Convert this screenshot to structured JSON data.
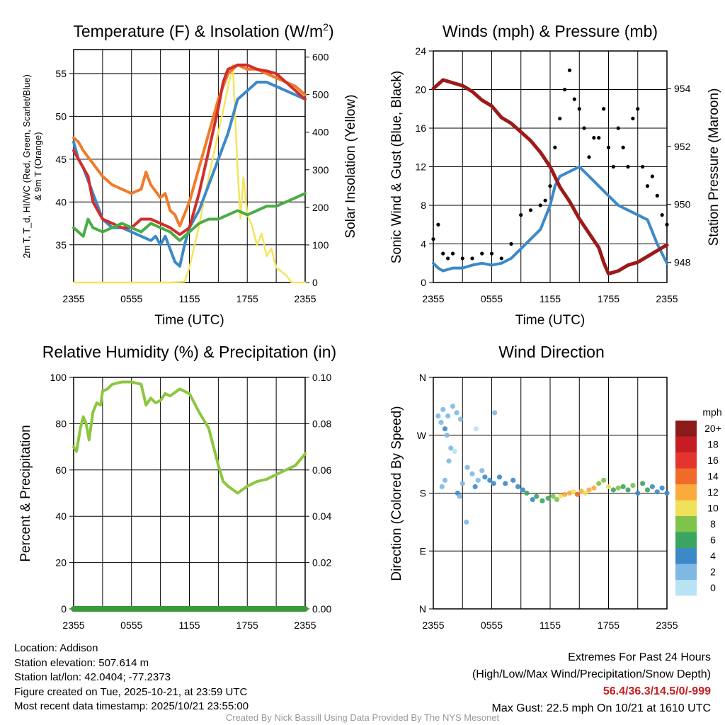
{
  "colors": {
    "red": "#d12e2b",
    "orange": "#f07b2a",
    "green": "#4bac45",
    "blue": "#3d89c8",
    "yellow": "#f6e45a",
    "maroon": "#9b1b1b",
    "rh": "#8dc63f",
    "precip": "#3a9a3a",
    "black": "#000000"
  },
  "chart_data": [
    {
      "id": "temp",
      "type": "line",
      "title": "Temperature (F) & Insolation (W/m",
      "title_sup": "2",
      "title_end": ")",
      "xlabel": "Time (UTC)",
      "ylabel_lines": [
        "2m T, T_d, HI/WC (Red, Green, Scarlet/Blue)",
        "& 9m T (Orange)"
      ],
      "y2label": "Solar Insolation (Yellow)",
      "xticks": [
        "2355",
        "0555",
        "1155",
        "1755",
        "2355"
      ],
      "xlim": [
        0,
        24
      ],
      "ylim": [
        30.6,
        57.8
      ],
      "yticks": [
        "35",
        "40",
        "45",
        "50",
        "55"
      ],
      "ytick_values": [
        35,
        40,
        45,
        50,
        55
      ],
      "y2lim": [
        0,
        620
      ],
      "y2ticks": [
        "0",
        "100",
        "200",
        "300",
        "400",
        "500",
        "600"
      ],
      "y2tick_values": [
        0,
        100,
        200,
        300,
        400,
        500,
        600
      ],
      "series": [
        {
          "name": "Insolation",
          "axis": "y2",
          "color": "yellow",
          "x": [
            0,
            8,
            10,
            11.5,
            12,
            13,
            14,
            15,
            15.6,
            16,
            16.5,
            17,
            17.3,
            17.6,
            18,
            18.5,
            19,
            19.5,
            20,
            20.5,
            21,
            22,
            22.6,
            24
          ],
          "values": [
            0,
            0,
            0,
            2,
            40,
            150,
            280,
            400,
            470,
            520,
            580,
            300,
            170,
            280,
            180,
            150,
            100,
            130,
            70,
            90,
            40,
            20,
            0,
            0
          ]
        },
        {
          "name": "9m T",
          "axis": "y",
          "color": "orange",
          "x": [
            0,
            0.5,
            1,
            2,
            3,
            4,
            5,
            6,
            7,
            7.5,
            8,
            9,
            9.5,
            10,
            10.5,
            11,
            12,
            13,
            14,
            15,
            16,
            17,
            18,
            19,
            20,
            21,
            22,
            23,
            24
          ],
          "values": [
            47.5,
            47,
            46,
            44.5,
            43,
            42,
            41.5,
            41,
            41.5,
            43.5,
            42,
            40.5,
            41,
            39,
            38.5,
            37.2,
            40,
            44,
            48,
            52,
            55,
            56,
            55.5,
            55.5,
            55,
            54.5,
            54,
            53.5,
            52.5
          ]
        },
        {
          "name": "Heat Index/Wind Chill",
          "axis": "y",
          "color": "blue",
          "x": [
            0,
            0.5,
            1,
            2,
            3,
            4,
            5,
            6,
            7,
            8,
            8.5,
            9,
            9.5,
            10,
            10.5,
            11,
            11.5,
            12,
            13,
            14,
            15,
            16,
            17,
            18,
            19,
            20,
            21,
            22,
            23,
            24
          ],
          "values": [
            47,
            45,
            44,
            41,
            38,
            37,
            37,
            36.5,
            36,
            35.5,
            36,
            35,
            36,
            34.5,
            33,
            32.5,
            35,
            37,
            39,
            42,
            45,
            48,
            52,
            53,
            54,
            54,
            53.5,
            53,
            52.5,
            52
          ]
        },
        {
          "name": "2m T",
          "axis": "y",
          "color": "red",
          "x": [
            0,
            0.5,
            1,
            1.5,
            2,
            3,
            4,
            5,
            6,
            7,
            8,
            9,
            10,
            11,
            12,
            13,
            14,
            15,
            15.5,
            16,
            17,
            18,
            19,
            20,
            21,
            22,
            23,
            24
          ],
          "values": [
            46,
            45,
            44,
            43,
            40,
            38,
            37.5,
            37,
            37,
            38,
            38,
            37.5,
            37,
            36.2,
            37,
            41,
            46,
            51,
            54,
            55.5,
            56,
            56,
            55.5,
            55.3,
            55,
            54,
            53,
            52
          ]
        },
        {
          "name": "2m Td",
          "axis": "y",
          "color": "green",
          "x": [
            0,
            0.5,
            1,
            1.5,
            2,
            3,
            4,
            5,
            6,
            7,
            8,
            9,
            10,
            11,
            12,
            13,
            14,
            15,
            16,
            17,
            18,
            19,
            20,
            21,
            22,
            23,
            24
          ],
          "values": [
            37,
            36.5,
            36,
            38,
            37,
            36.5,
            37,
            37.5,
            37,
            36.5,
            37.5,
            37,
            36.5,
            35.5,
            36.5,
            37.5,
            38,
            38,
            38.5,
            39,
            38.5,
            39,
            39.5,
            39.5,
            40,
            40.5,
            41
          ]
        }
      ]
    },
    {
      "id": "wind",
      "type": "line+scatter",
      "title": "Winds (mph) & Pressure (mb)",
      "xlabel": "Time (UTC)",
      "ylabel": "Sonic Wind & Gust (Blue, Black)",
      "y2label": "Station Pressure (Maroon)",
      "xticks": [
        "2355",
        "0555",
        "1155",
        "1755",
        "2355"
      ],
      "xlim": [
        0,
        24
      ],
      "ylim": [
        0,
        24
      ],
      "yticks": [
        "0",
        "4",
        "8",
        "12",
        "16",
        "20",
        "24"
      ],
      "ytick_values": [
        0,
        4,
        8,
        12,
        16,
        20,
        24
      ],
      "y2lim": [
        947.3,
        955.3
      ],
      "y2ticks": [
        "948",
        "950",
        "952",
        "954"
      ],
      "y2tick_values": [
        948,
        950,
        952,
        954
      ],
      "series": [
        {
          "name": "Sonic Wind",
          "axis": "y",
          "color": "blue",
          "x": [
            0,
            0.5,
            1,
            2,
            3,
            4,
            5,
            6,
            7,
            8,
            9,
            10,
            11,
            12,
            12.5,
            13,
            14,
            15,
            16,
            17,
            18,
            19,
            20,
            21,
            22,
            23,
            24
          ],
          "values": [
            2,
            1.5,
            1.2,
            1.5,
            1.5,
            1.8,
            2,
            1.8,
            2,
            2.5,
            3.5,
            4.5,
            5.5,
            8,
            10,
            11,
            11.5,
            12,
            11,
            10,
            9,
            8,
            7.5,
            7,
            6.5,
            4,
            2
          ]
        },
        {
          "name": "Gust",
          "axis": "y",
          "color": "black",
          "mode": "points",
          "x": [
            0,
            0.5,
            1,
            1.5,
            2,
            3,
            4,
            5,
            6,
            7,
            8,
            9,
            10,
            11,
            11.5,
            12,
            12.5,
            13,
            13.5,
            14,
            14.5,
            15,
            15.5,
            16,
            16.5,
            17,
            17.5,
            18,
            18.5,
            19,
            19.5,
            20,
            20.5,
            21,
            21.5,
            22,
            22.5,
            23,
            23.5,
            24
          ],
          "values": [
            4.5,
            6,
            3,
            2.5,
            3,
            2.5,
            2.5,
            3,
            3,
            2.5,
            4,
            7,
            7.5,
            8,
            8.5,
            10,
            14,
            17,
            20,
            22,
            19,
            18,
            16,
            13,
            15,
            15,
            18,
            14,
            12,
            16,
            14,
            12,
            17,
            18,
            12,
            10,
            11,
            9,
            7,
            6
          ]
        },
        {
          "name": "Station Pressure",
          "axis": "y2",
          "color": "maroon",
          "x": [
            0,
            1,
            2,
            3,
            4,
            5,
            6,
            7,
            8,
            9,
            10,
            11,
            12,
            13,
            14,
            15,
            16,
            17,
            17.5,
            18,
            19,
            20,
            21,
            22,
            23,
            24
          ],
          "values": [
            954,
            954.3,
            954.2,
            954.1,
            953.9,
            953.6,
            953.4,
            953,
            952.8,
            952.5,
            952.2,
            951.8,
            951.3,
            950.6,
            950.1,
            949.5,
            949,
            948.5,
            948,
            947.6,
            947.7,
            947.9,
            948,
            948.2,
            948.4,
            948.6
          ]
        }
      ]
    },
    {
      "id": "rh",
      "type": "line",
      "title": "Relative Humidity (%) & Precipitation (in)",
      "ylabel": "Percent & Precipitation",
      "xticks": [
        "2355",
        "0555",
        "1155",
        "1755",
        "2355"
      ],
      "xlim": [
        0,
        24
      ],
      "ylim": [
        0,
        100
      ],
      "yticks": [
        "0",
        "20",
        "40",
        "60",
        "80",
        "100"
      ],
      "ytick_values": [
        0,
        20,
        40,
        60,
        80,
        100
      ],
      "y2lim": [
        0,
        0.1
      ],
      "y2ticks": [
        "0.00",
        "0.02",
        "0.04",
        "0.06",
        "0.08",
        "0.10"
      ],
      "y2tick_values": [
        0,
        0.02,
        0.04,
        0.06,
        0.08,
        0.1
      ],
      "series": [
        {
          "name": "Relative Humidity",
          "axis": "y",
          "color": "rh",
          "x": [
            0,
            0.3,
            0.7,
            1,
            1.3,
            1.6,
            2,
            2.4,
            2.8,
            3,
            3.5,
            4,
            5,
            6,
            7,
            7.5,
            8,
            8.5,
            9,
            9.5,
            10,
            11,
            12,
            13,
            14,
            15,
            15.5,
            16,
            17,
            18,
            19,
            20,
            21,
            22,
            23,
            24
          ],
          "values": [
            70,
            68,
            78,
            83,
            80,
            73,
            85,
            89,
            88,
            94,
            95,
            97,
            98,
            98,
            97,
            88,
            91,
            89,
            90,
            93,
            92,
            95,
            93,
            85,
            78,
            62,
            55,
            53,
            50,
            53,
            55,
            56,
            58,
            60,
            62,
            67
          ]
        },
        {
          "name": "Precipitation",
          "axis": "y2",
          "color": "precip",
          "x": [
            0,
            24
          ],
          "values": [
            0,
            0
          ]
        }
      ]
    },
    {
      "id": "dir",
      "type": "scatter",
      "title": "Wind Direction",
      "ylabel": "Direction (Colored By Speed)",
      "xticks": [
        "2355",
        "0555",
        "1155",
        "1755",
        "2355"
      ],
      "xlim": [
        0,
        24
      ],
      "ylim": [
        0,
        360
      ],
      "yticks": [
        "N",
        "E",
        "S",
        "W",
        "N"
      ],
      "ytick_values": [
        0,
        90,
        180,
        270,
        360
      ],
      "legend": {
        "title": "mph",
        "labels": [
          "20+",
          "18",
          "16",
          "14",
          "12",
          "10",
          "8",
          "6",
          "4",
          "2",
          "0"
        ],
        "colors": [
          "#8b1a1a",
          "#c41e24",
          "#e3342f",
          "#f06a2a",
          "#fbaa3e",
          "#efe05a",
          "#7fc34a",
          "#3aa560",
          "#3d89c8",
          "#7fb8e2",
          "#b8e3f5"
        ]
      },
      "points": [
        [
          0.5,
          300,
          2
        ],
        [
          0.8,
          290,
          1
        ],
        [
          1,
          310,
          2
        ],
        [
          1.2,
          280,
          3
        ],
        [
          1.5,
          300,
          2
        ],
        [
          2,
          315,
          2
        ],
        [
          2.4,
          305,
          1
        ],
        [
          2.8,
          295,
          1
        ],
        [
          1.4,
          270,
          2
        ],
        [
          1.8,
          250,
          1
        ],
        [
          1.6,
          230,
          2
        ],
        [
          1.2,
          200,
          1
        ],
        [
          0.9,
          190,
          1
        ],
        [
          2.5,
          180,
          3
        ],
        [
          2.7,
          175,
          2
        ],
        [
          3,
          195,
          1
        ],
        [
          3.5,
          220,
          2
        ],
        [
          4,
          210,
          2
        ],
        [
          4.3,
          190,
          3
        ],
        [
          4.6,
          200,
          2
        ],
        [
          5,
          215,
          2
        ],
        [
          5.3,
          205,
          3
        ],
        [
          5.8,
          200,
          4
        ],
        [
          6.2,
          195,
          4
        ],
        [
          6.8,
          205,
          3
        ],
        [
          7.4,
          195,
          4
        ],
        [
          8.2,
          200,
          4
        ],
        [
          8.7,
          190,
          4
        ],
        [
          9.2,
          185,
          4
        ],
        [
          9.6,
          180,
          5
        ],
        [
          10.2,
          170,
          4
        ],
        [
          10.6,
          175,
          5
        ],
        [
          11.2,
          168,
          6
        ],
        [
          11.8,
          172,
          6
        ],
        [
          12.3,
          175,
          7
        ],
        [
          12.7,
          170,
          8
        ],
        [
          13.1,
          176,
          10
        ],
        [
          13.5,
          178,
          11
        ],
        [
          14,
          180,
          12
        ],
        [
          14.4,
          182,
          10
        ],
        [
          14.8,
          178,
          13
        ],
        [
          15.2,
          183,
          11
        ],
        [
          15.6,
          180,
          10
        ],
        [
          16,
          185,
          12
        ],
        [
          16.5,
          188,
          11
        ],
        [
          17,
          195,
          8
        ],
        [
          17.5,
          200,
          7
        ],
        [
          18,
          190,
          9
        ],
        [
          18.5,
          185,
          6
        ],
        [
          19,
          188,
          8
        ],
        [
          19.5,
          190,
          5
        ],
        [
          20,
          185,
          6
        ],
        [
          20.5,
          192,
          7
        ],
        [
          21,
          180,
          4
        ],
        [
          21.5,
          195,
          6
        ],
        [
          22,
          185,
          5
        ],
        [
          22.5,
          190,
          4
        ],
        [
          23,
          182,
          3
        ],
        [
          23.5,
          188,
          4
        ],
        [
          24,
          180,
          3
        ],
        [
          4.4,
          280,
          0
        ],
        [
          6.3,
          305,
          1
        ],
        [
          3.4,
          135,
          1
        ],
        [
          2.2,
          245,
          0
        ]
      ]
    }
  ],
  "info": {
    "location": "Location: Addison",
    "elevation": "Station elevation: 507.614 m",
    "latlon": "Station lat/lon: 42.0404; -77.2373",
    "created": "Figure created on Tue, 2025-10-21, at 23:59 UTC",
    "recent": "Most recent data timestamp: 2025/10/21 23:55:00"
  },
  "extremes": {
    "title": "Extremes For Past 24 Hours",
    "subtitle": "(High/Low/Max Wind/Precipitation/Snow Depth)",
    "values": "56.4/36.3/14.5/0/-999",
    "gust": "Max Gust: 22.5 mph On 10/21 at 1610 UTC"
  },
  "credit": "Created By Nick Bassill Using Data Provided By The NYS Mesonet"
}
